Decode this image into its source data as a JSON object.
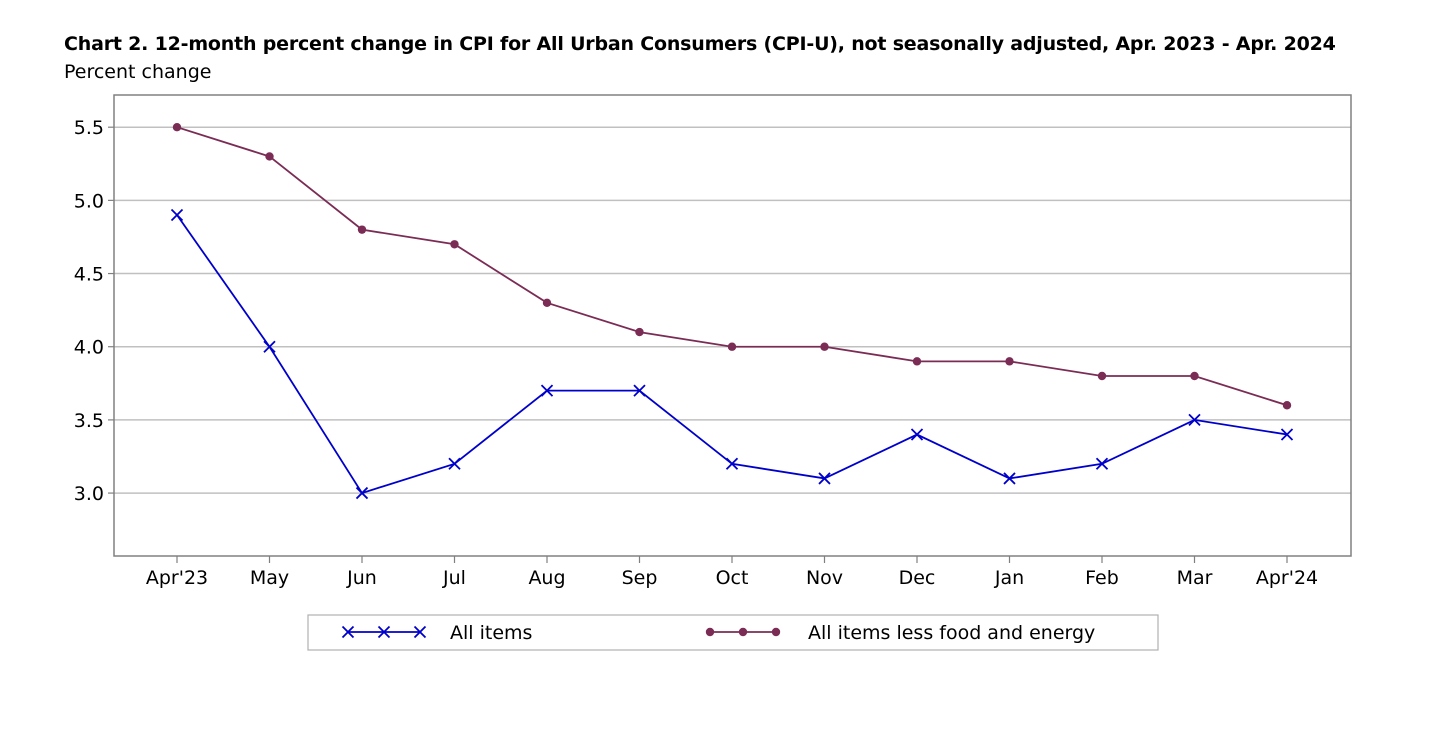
{
  "chart_data": {
    "type": "line",
    "title": "Chart 2. 12-month percent change in CPI for All Urban Consumers (CPI-U), not seasonally adjusted, Apr. 2023 - Apr. 2024",
    "ylabel": "Percent change",
    "xlabel": "",
    "categories": [
      "Apr'23",
      "May",
      "Jun",
      "Jul",
      "Aug",
      "Sep",
      "Oct",
      "Nov",
      "Dec",
      "Jan",
      "Feb",
      "Mar",
      "Apr'24"
    ],
    "ylim": [
      2.57,
      5.72
    ],
    "yticks": [
      3.0,
      3.5,
      4.0,
      4.5,
      5.0,
      5.5
    ],
    "ytick_labels": [
      "3.0",
      "3.5",
      "4.0",
      "4.5",
      "5.0",
      "5.5"
    ],
    "grid": true,
    "legend_position": "bottom",
    "series": [
      {
        "name": "All items",
        "color": "#0000cc",
        "marker": "x",
        "values": [
          4.9,
          4.0,
          3.0,
          3.2,
          3.7,
          3.7,
          3.2,
          3.1,
          3.4,
          3.1,
          3.2,
          3.5,
          3.4
        ]
      },
      {
        "name": "All items less food and energy",
        "color": "#7b2c55",
        "marker": "circle",
        "values": [
          5.5,
          5.3,
          4.8,
          4.7,
          4.3,
          4.1,
          4.0,
          4.0,
          3.9,
          3.9,
          3.8,
          3.8,
          3.6
        ]
      }
    ]
  }
}
